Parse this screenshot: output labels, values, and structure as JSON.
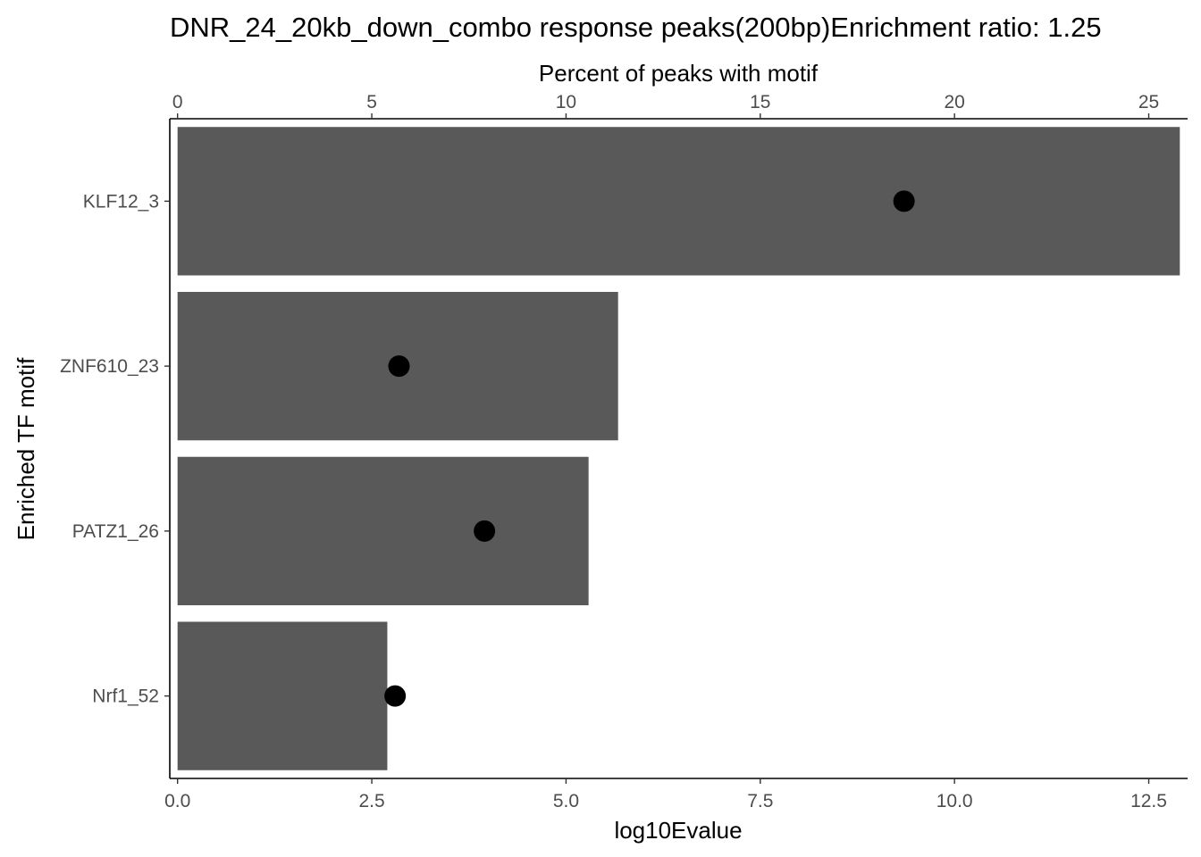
{
  "chart_data": {
    "type": "bar",
    "orientation": "horizontal",
    "title": "DNR_24_20kb_down_combo response peaks(200bp)Enrichment ratio: 1.25",
    "ylabel": "Enriched TF motif",
    "xlabel": "log10Evalue",
    "x2label": "Percent of peaks with motif",
    "categories": [
      "KLF12_3",
      "ZNF610_23",
      "PATZ1_26",
      "Nrf1_52"
    ],
    "series": [
      {
        "kind": "bar",
        "axis": "bottom",
        "values": [
          12.9,
          5.67,
          5.29,
          2.7
        ],
        "color": "#595959"
      },
      {
        "kind": "point",
        "axis": "top",
        "values": [
          18.7,
          5.7,
          7.9,
          5.6
        ],
        "color": "#000000"
      }
    ],
    "xlim": [
      -0.1,
      13.0
    ],
    "xticks": [
      0.0,
      2.5,
      5.0,
      7.5,
      10.0,
      12.5
    ],
    "xtick_labels": [
      "0.0",
      "2.5",
      "5.0",
      "7.5",
      "10.0",
      "12.5"
    ],
    "x2lim": [
      -0.2,
      26.0
    ],
    "x2ticks": [
      0,
      5,
      10,
      15,
      20,
      25
    ],
    "x2tick_labels": [
      "0",
      "5",
      "10",
      "15",
      "20",
      "25"
    ],
    "grid": false,
    "legend": "none"
  }
}
